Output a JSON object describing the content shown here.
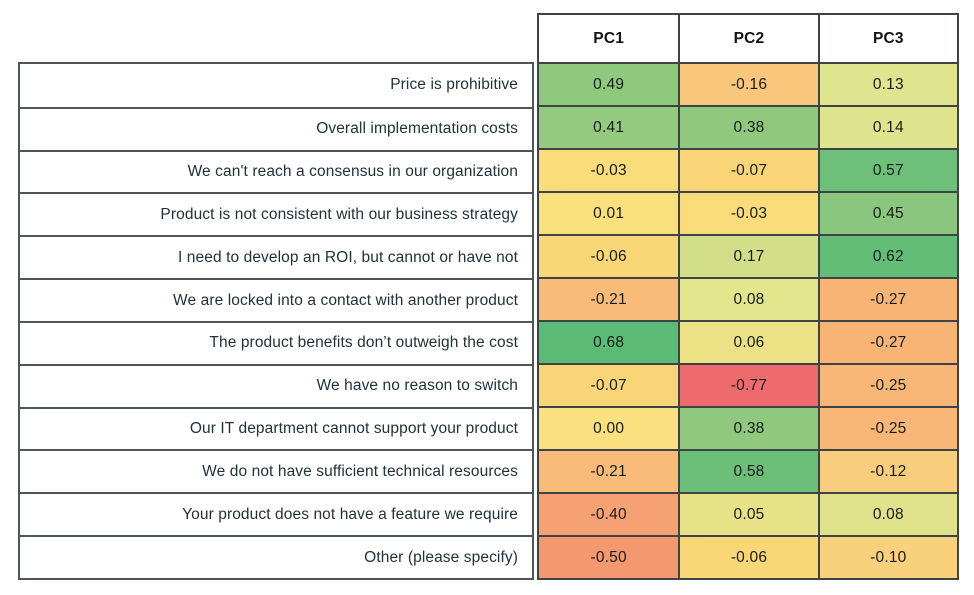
{
  "chart_data": {
    "type": "heatmap",
    "columns": [
      "PC1",
      "PC2",
      "PC3"
    ],
    "rows": [
      "Price is prohibitive",
      "Overall implementation costs",
      "We can't reach a consensus in our organization",
      "Product is not consistent with our business strategy",
      "I need to develop an ROI, but cannot or have not",
      "We are locked into a contact with another product",
      "The product benefits don’t outweigh the cost",
      "We have no reason to switch",
      "Our IT department cannot support your product",
      "We do not have sufficient technical resources",
      "Your product does not have a feature we require",
      "Other (please specify)"
    ],
    "values": [
      [
        0.49,
        -0.16,
        0.13
      ],
      [
        0.41,
        0.38,
        0.14
      ],
      [
        -0.03,
        -0.07,
        0.57
      ],
      [
        0.01,
        -0.03,
        0.45
      ],
      [
        -0.06,
        0.17,
        0.62
      ],
      [
        -0.21,
        0.08,
        -0.27
      ],
      [
        0.68,
        0.06,
        -0.27
      ],
      [
        -0.07,
        -0.77,
        -0.25
      ],
      [
        0.0,
        0.38,
        -0.25
      ],
      [
        -0.21,
        0.58,
        -0.12
      ],
      [
        -0.4,
        0.05,
        0.08
      ],
      [
        -0.5,
        -0.06,
        -0.1
      ]
    ],
    "value_range": [
      -0.77,
      0.68
    ],
    "colormap": {
      "low": "#ED6B6C",
      "mid": "#FAE07E",
      "high": "#5BBB76",
      "description": "red-yellow-green diverging scale"
    },
    "legend_position": "none",
    "grid": true
  },
  "table": {
    "headers": [
      "PC1",
      "PC2",
      "PC3"
    ],
    "rows": [
      {
        "label": "Price is prohibitive",
        "cells": [
          {
            "text": "0.49",
            "bg": "#8FC97E"
          },
          {
            "text": "-0.16",
            "bg": "#F9C77C"
          },
          {
            "text": "0.13",
            "bg": "#DFE48F"
          }
        ]
      },
      {
        "label": "Overall implementation costs",
        "cells": [
          {
            "text": "0.41",
            "bg": "#94CA7F"
          },
          {
            "text": "0.38",
            "bg": "#90C87D"
          },
          {
            "text": "0.14",
            "bg": "#DEE38E"
          }
        ]
      },
      {
        "label": "We can't reach a consensus in our organization",
        "cells": [
          {
            "text": "-0.03",
            "bg": "#FADC7B"
          },
          {
            "text": "-0.07",
            "bg": "#F9D577"
          },
          {
            "text": "0.57",
            "bg": "#6DBF79"
          }
        ]
      },
      {
        "label": "Product is not consistent with our business strategy",
        "cells": [
          {
            "text": "0.01",
            "bg": "#FAE07D"
          },
          {
            "text": "-0.03",
            "bg": "#FADC7B"
          },
          {
            "text": "0.45",
            "bg": "#8AC67D"
          }
        ]
      },
      {
        "label": "I need to develop an ROI, but cannot or have not",
        "cells": [
          {
            "text": "-0.06",
            "bg": "#FAD776"
          },
          {
            "text": "0.17",
            "bg": "#D2DE88"
          },
          {
            "text": "0.62",
            "bg": "#63BD77"
          }
        ]
      },
      {
        "label": "We are locked into a contact with another product",
        "cells": [
          {
            "text": "-0.21",
            "bg": "#F8BC78"
          },
          {
            "text": "0.08",
            "bg": "#E3E58D"
          },
          {
            "text": "-0.27",
            "bg": "#F8B475"
          }
        ]
      },
      {
        "label": "The product benefits don’t outweigh the cost",
        "cells": [
          {
            "text": "0.68",
            "bg": "#5BBB76"
          },
          {
            "text": "0.06",
            "bg": "#ECE285"
          },
          {
            "text": "-0.27",
            "bg": "#F8B475"
          }
        ]
      },
      {
        "label": "We have no reason to switch",
        "cells": [
          {
            "text": "-0.07",
            "bg": "#F9D577"
          },
          {
            "text": "-0.77",
            "bg": "#ED6B6C"
          },
          {
            "text": "-0.25",
            "bg": "#F8B776"
          }
        ]
      },
      {
        "label": "Our IT department cannot support your product",
        "cells": [
          {
            "text": "0.00",
            "bg": "#FAE07E"
          },
          {
            "text": "0.38",
            "bg": "#90C87D"
          },
          {
            "text": "-0.25",
            "bg": "#F8B776"
          }
        ]
      },
      {
        "label": "We do not have sufficient technical resources",
        "cells": [
          {
            "text": "-0.21",
            "bg": "#F8BC78"
          },
          {
            "text": "0.58",
            "bg": "#6CBF79"
          },
          {
            "text": "-0.12",
            "bg": "#F9CD7E"
          }
        ]
      },
      {
        "label": "Your product does not have a feature we require",
        "cells": [
          {
            "text": "-0.40",
            "bg": "#F5A173"
          },
          {
            "text": "0.05",
            "bg": "#E7E287"
          },
          {
            "text": "0.08",
            "bg": "#E0E38C"
          }
        ]
      },
      {
        "label": "Other (please specify)",
        "cells": [
          {
            "text": "-0.50",
            "bg": "#F49870"
          },
          {
            "text": "-0.06",
            "bg": "#FAD776"
          },
          {
            "text": "-0.10",
            "bg": "#F9D07C"
          }
        ]
      }
    ]
  }
}
